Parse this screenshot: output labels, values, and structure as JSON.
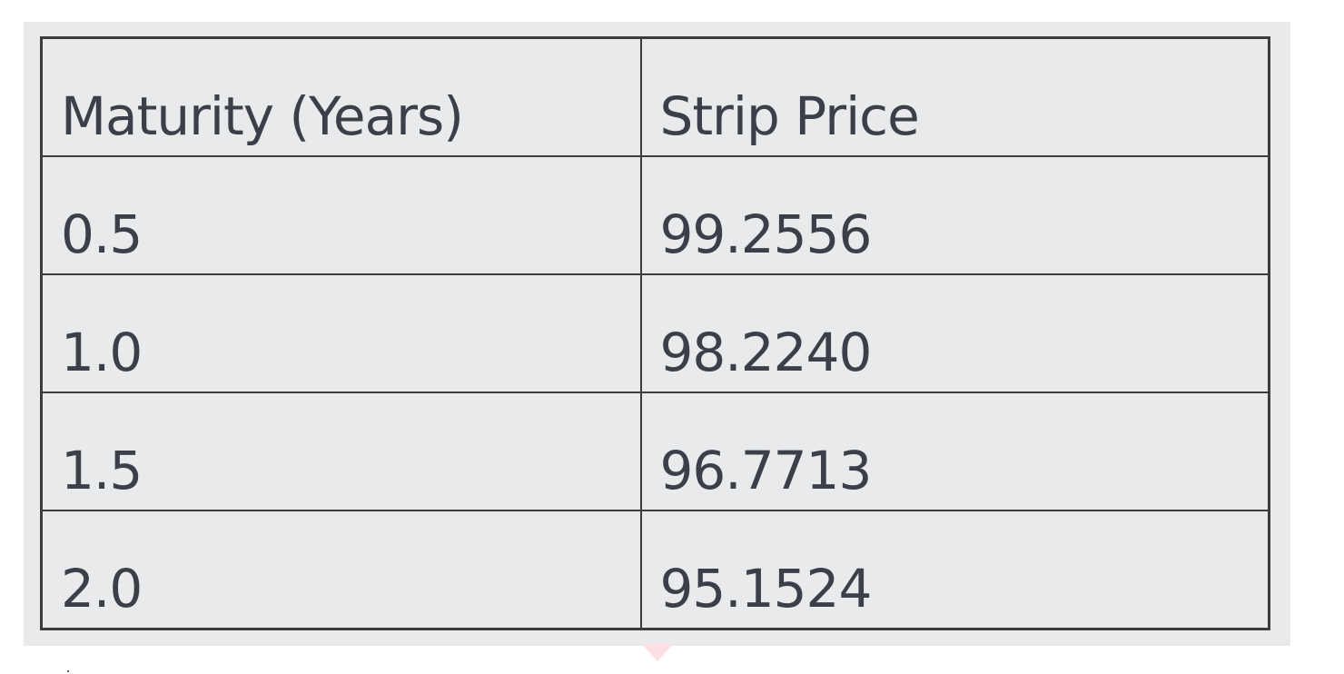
{
  "table": {
    "headers": [
      "Maturity (Years)",
      "Strip Price"
    ],
    "rows": [
      [
        "0.5",
        "99.2556"
      ],
      [
        "1.0",
        "98.2240"
      ],
      [
        "1.5",
        "96.7713"
      ],
      [
        "2.0",
        "95.1524"
      ]
    ]
  }
}
